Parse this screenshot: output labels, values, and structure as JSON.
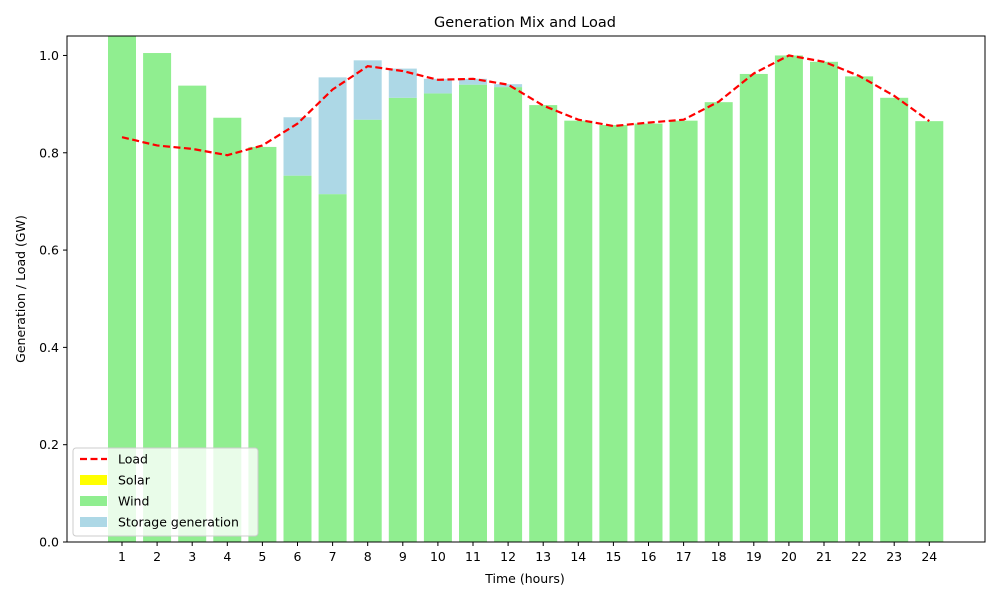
{
  "chart_data": {
    "type": "bar",
    "stacked": true,
    "title": "Generation Mix and Load",
    "xlabel": "Time (hours)",
    "ylabel": "Generation / Load (GW)",
    "ylim": [
      0,
      1.04
    ],
    "yticks": [
      0.0,
      0.2,
      0.4,
      0.6,
      0.8,
      1.0
    ],
    "ytick_labels": [
      "0.0",
      "0.2",
      "0.4",
      "0.6",
      "0.8",
      "1.0"
    ],
    "categories": [
      "1",
      "2",
      "3",
      "4",
      "5",
      "6",
      "7",
      "8",
      "9",
      "10",
      "11",
      "12",
      "13",
      "14",
      "15",
      "16",
      "17",
      "18",
      "19",
      "20",
      "21",
      "22",
      "23",
      "24"
    ],
    "grid": false,
    "legend_position": "lower-left",
    "series": [
      {
        "name": "Solar",
        "kind": "bar",
        "color": "#ffff00",
        "values": [
          0,
          0,
          0,
          0,
          0,
          0,
          0,
          0,
          0,
          0,
          0,
          0,
          0,
          0,
          0,
          0,
          0,
          0,
          0,
          0,
          0,
          0,
          0,
          0
        ]
      },
      {
        "name": "Wind",
        "kind": "bar",
        "color": "#90ee90",
        "values": [
          1.04,
          1.005,
          0.938,
          0.872,
          0.812,
          0.753,
          0.715,
          0.868,
          0.913,
          0.922,
          0.94,
          0.935,
          0.898,
          0.866,
          0.857,
          0.86,
          0.866,
          0.904,
          0.962,
          1.0,
          0.987,
          0.957,
          0.913,
          0.865
        ]
      },
      {
        "name": "Storage generation",
        "kind": "bar",
        "color": "#add8e6",
        "values": [
          0,
          0,
          0,
          0,
          0,
          0.12,
          0.24,
          0.122,
          0.06,
          0.03,
          0.012,
          0.006,
          0,
          0,
          0,
          0,
          0,
          0,
          0,
          0,
          0,
          0,
          0,
          0
        ]
      },
      {
        "name": "Load",
        "kind": "line",
        "color": "#ff0000",
        "line_style": "dashed",
        "values": [
          0.832,
          0.815,
          0.808,
          0.795,
          0.815,
          0.86,
          0.93,
          0.978,
          0.968,
          0.95,
          0.952,
          0.94,
          0.897,
          0.868,
          0.855,
          0.862,
          0.868,
          0.905,
          0.963,
          1.0,
          0.987,
          0.958,
          0.917,
          0.865
        ]
      }
    ],
    "legend_order": [
      "Load",
      "Solar",
      "Wind",
      "Storage generation"
    ]
  }
}
